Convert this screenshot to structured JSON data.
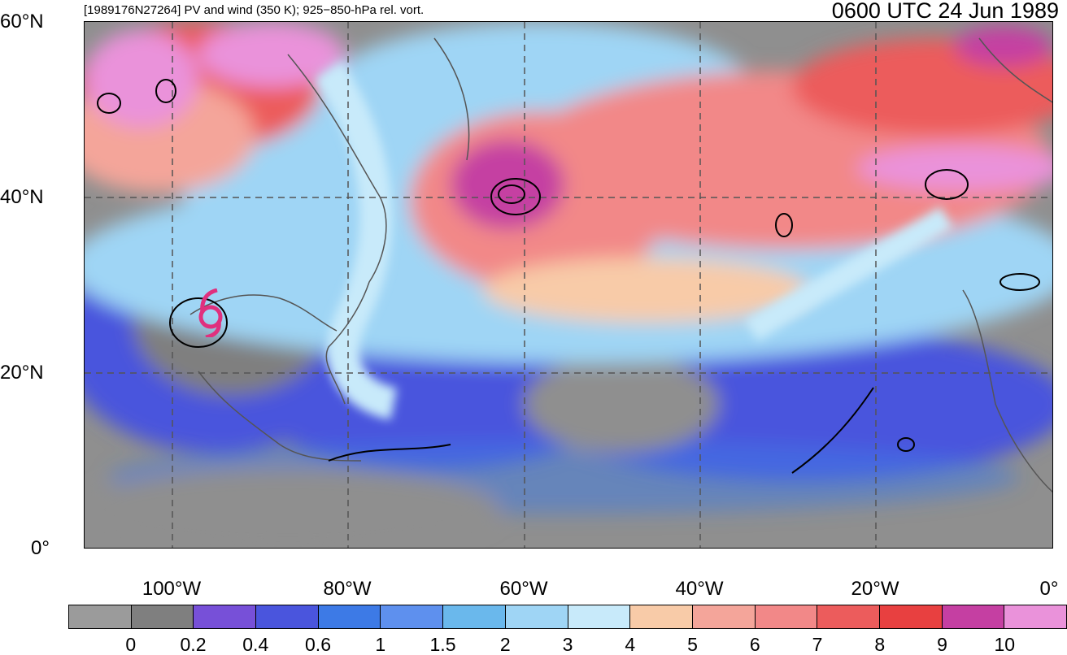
{
  "title": {
    "left": "[1989176N27264] PV and wind (350 K); 925−850-hPa rel. vort.",
    "right": "0600 UTC 24 Jun 1989"
  },
  "lat_labels": [
    "60°N",
    "40°N",
    "20°N",
    "0°"
  ],
  "lon_labels": [
    "100°W",
    "80°W",
    "60°W",
    "40°W",
    "20°W",
    "0°"
  ],
  "colorbar": {
    "colors": [
      "#9b9b9b",
      "#7f7f7f",
      "#7750d8",
      "#4a55dd",
      "#3d7ae6",
      "#5e90ee",
      "#6ab8ec",
      "#9fd5f5",
      "#c8eafa",
      "#f8cba8",
      "#f4a59a",
      "#f28888",
      "#ec5c5c",
      "#e84040",
      "#c53fa2",
      "#ea92da"
    ],
    "labels": [
      "0",
      "0.2",
      "0.4",
      "0.6",
      "1",
      "1.5",
      "2",
      "3",
      "4",
      "5",
      "6",
      "7",
      "8",
      "9",
      "10"
    ]
  },
  "storm_symbol": {
    "color": "#e0307e",
    "name": "tropical-cyclone-icon"
  }
}
